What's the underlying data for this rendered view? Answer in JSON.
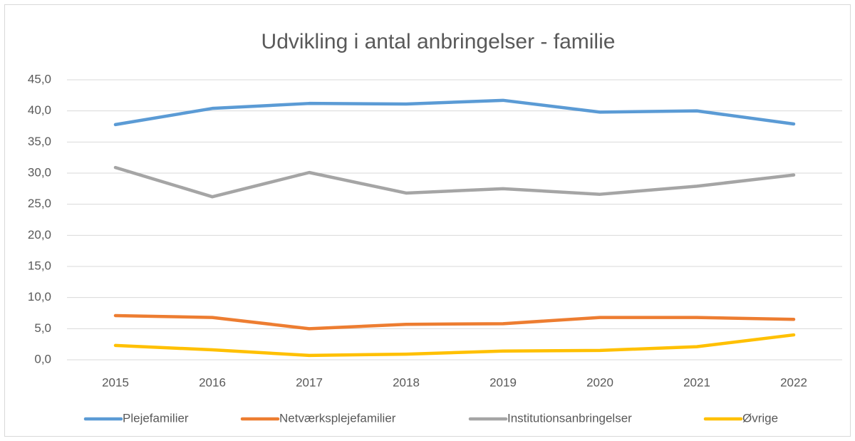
{
  "chart_data": {
    "type": "line",
    "title": "Udvikling i antal anbringelser - familie",
    "categories": [
      "2015",
      "2016",
      "2017",
      "2018",
      "2019",
      "2020",
      "2021",
      "2022"
    ],
    "series": [
      {
        "name": "Plejefamilier",
        "color": "#5b9bd5",
        "values": [
          37.8,
          40.4,
          41.2,
          41.1,
          41.7,
          39.8,
          40.0,
          37.9
        ]
      },
      {
        "name": "Netværksplejefamilier",
        "color": "#ed7d31",
        "values": [
          7.1,
          6.8,
          5.0,
          5.7,
          5.8,
          6.8,
          6.8,
          6.5
        ]
      },
      {
        "name": "Institutionsanbringelser",
        "color": "#a5a5a5",
        "values": [
          30.9,
          26.2,
          30.1,
          26.8,
          27.5,
          26.6,
          27.9,
          29.7
        ]
      },
      {
        "name": "Øvrige",
        "color": "#ffc000",
        "values": [
          2.3,
          1.6,
          0.7,
          0.9,
          1.4,
          1.5,
          2.1,
          4.0
        ]
      }
    ],
    "ylim": [
      0,
      45
    ],
    "yticks": [
      {
        "value": 0,
        "label": "0,0"
      },
      {
        "value": 5,
        "label": "5,0"
      },
      {
        "value": 10,
        "label": "10,0"
      },
      {
        "value": 15,
        "label": "15,0"
      },
      {
        "value": 20,
        "label": "20,0"
      },
      {
        "value": 25,
        "label": "25,0"
      },
      {
        "value": 30,
        "label": "30,0"
      },
      {
        "value": 35,
        "label": "35,0"
      },
      {
        "value": 40,
        "label": "40,0"
      },
      {
        "value": 45,
        "label": "45,0"
      }
    ],
    "grid": true,
    "legend": "bottom"
  }
}
